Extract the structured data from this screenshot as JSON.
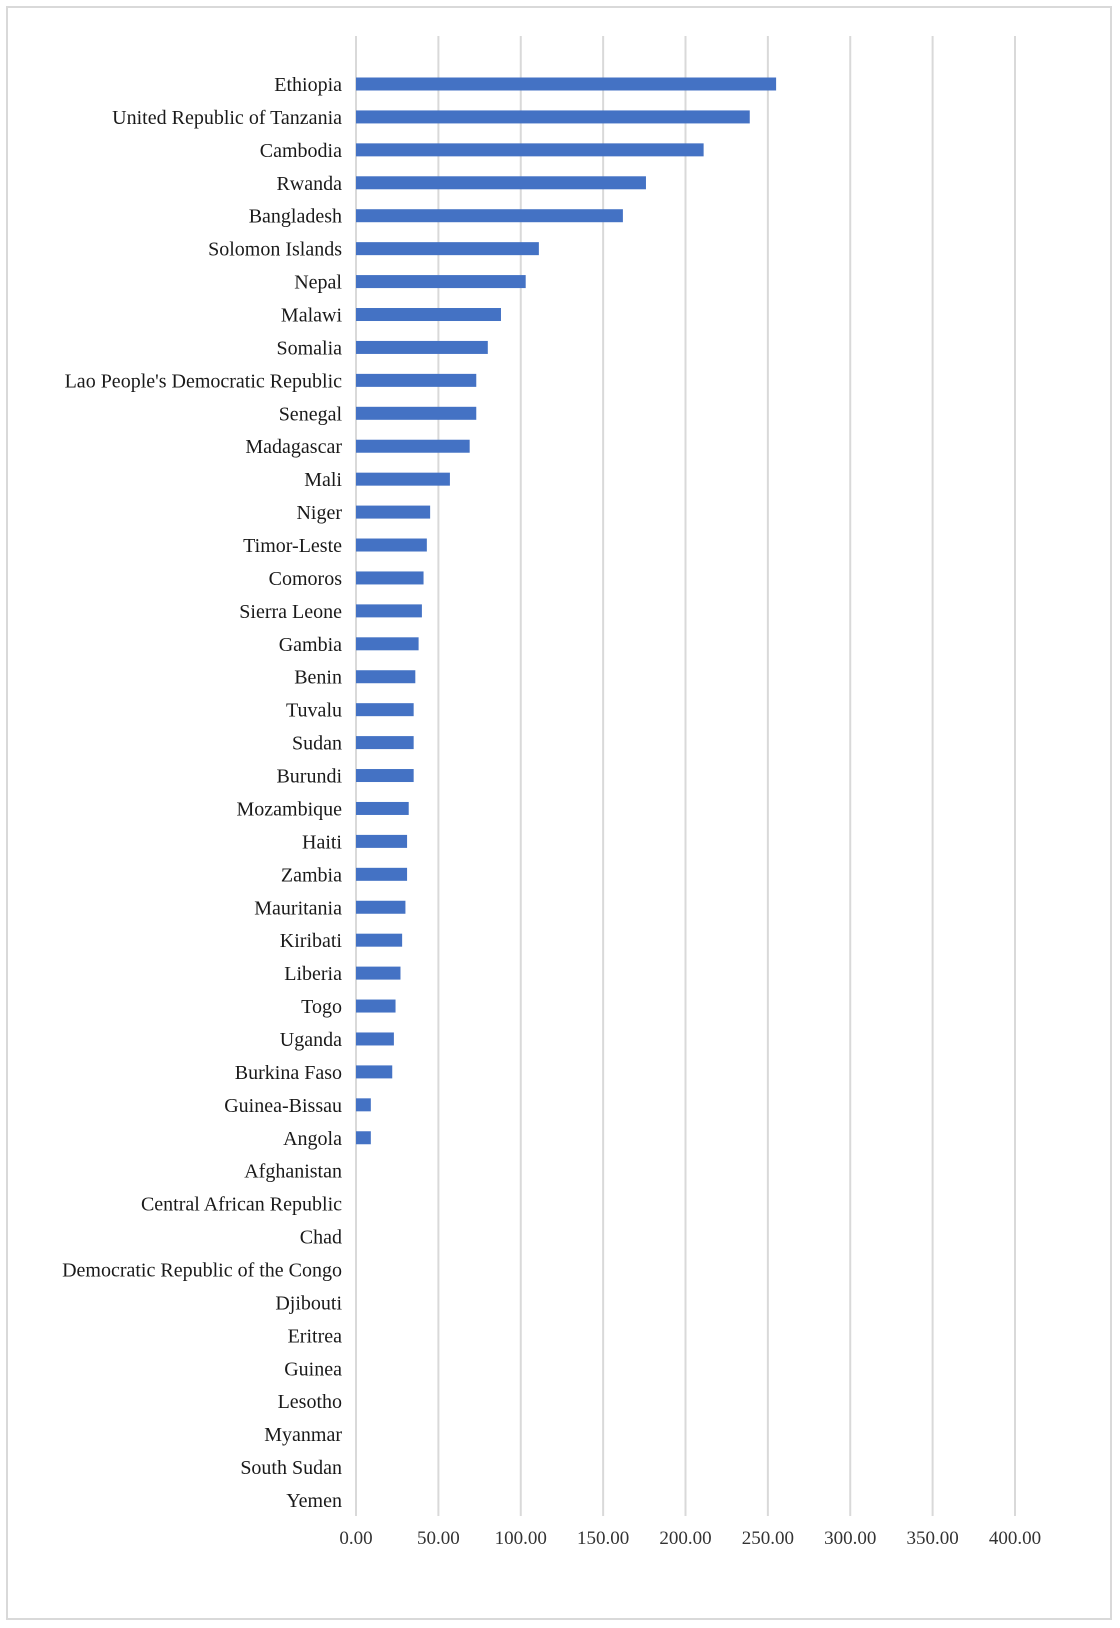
{
  "chart_data": {
    "type": "bar",
    "orientation": "horizontal",
    "title": "",
    "xlabel": "",
    "ylabel": "",
    "xlim": [
      0,
      400
    ],
    "grid": "vertical",
    "legend": "none",
    "bar_color": "#4472c4",
    "gridline_color": "#d9d9d9",
    "x_ticks": [
      "0.00",
      "50.00",
      "100.00",
      "150.00",
      "200.00",
      "250.00",
      "300.00",
      "350.00",
      "400.00"
    ],
    "categories": [
      "Ethiopia",
      "United Republic of Tanzania",
      "Cambodia",
      "Rwanda",
      "Bangladesh",
      "Solomon Islands",
      "Nepal",
      "Malawi",
      "Somalia",
      "Lao People's Democratic Republic",
      "Senegal",
      "Madagascar",
      "Mali",
      "Niger",
      "Timor-Leste",
      "Comoros",
      "Sierra Leone",
      "Gambia",
      "Benin",
      "Tuvalu",
      "Sudan",
      "Burundi",
      "Mozambique",
      "Haiti",
      "Zambia",
      "Mauritania",
      "Kiribati",
      "Liberia",
      "Togo",
      "Uganda",
      "Burkina Faso",
      "Guinea-Bissau",
      "Angola",
      "Afghanistan",
      "Central African Republic",
      "Chad",
      "Democratic Republic of the Congo",
      "Djibouti",
      "Eritrea",
      "Guinea",
      "Lesotho",
      "Myanmar",
      "South Sudan",
      "Yemen"
    ],
    "values": [
      255,
      239,
      211,
      176,
      162,
      111,
      103,
      88,
      80,
      73,
      73,
      69,
      57,
      45,
      43,
      41,
      40,
      38,
      36,
      35,
      35,
      35,
      32,
      31,
      31,
      30,
      28,
      27,
      24,
      23,
      22,
      9,
      9,
      0,
      0,
      0,
      0,
      0,
      0,
      0,
      0,
      0,
      0,
      0
    ]
  }
}
